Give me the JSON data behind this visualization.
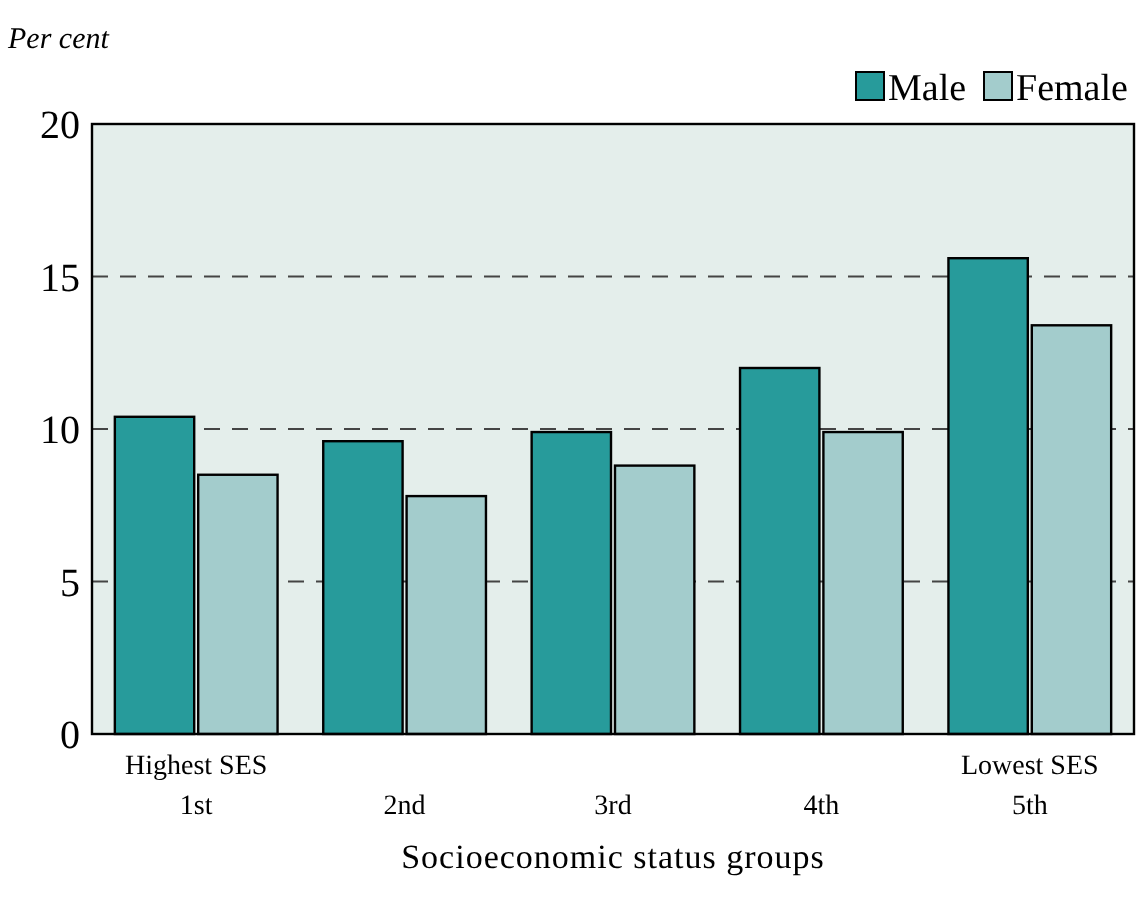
{
  "chart_data": {
    "type": "bar",
    "ylabel": "Per cent",
    "xlabel": "Socioeconomic status groups",
    "categories": [
      "Highest SES\n1st",
      "2nd",
      "3rd",
      "4th",
      "Lowest SES\n5th"
    ],
    "series": [
      {
        "name": "Male",
        "color": "#279b9b",
        "values": [
          10.4,
          9.6,
          9.9,
          12.0,
          15.6
        ]
      },
      {
        "name": "Female",
        "color": "#a3cccc",
        "values": [
          8.5,
          7.8,
          8.8,
          9.9,
          13.4
        ]
      }
    ],
    "ylim": [
      0,
      20
    ],
    "yticks": [
      0,
      5,
      10,
      15,
      20
    ],
    "grid": "y",
    "line_style": "dashed",
    "legend": "top right"
  }
}
